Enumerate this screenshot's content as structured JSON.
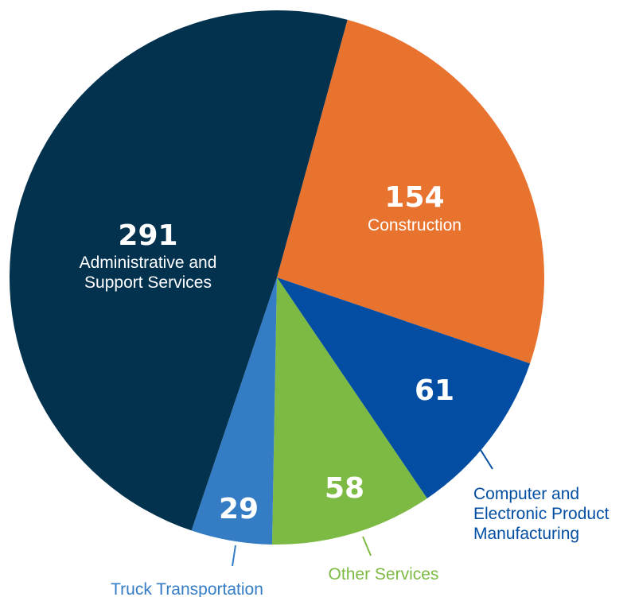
{
  "chart_data": {
    "type": "pie",
    "title": "",
    "slices": [
      {
        "label": "Construction",
        "value": 154,
        "color": "#E8732F",
        "label_color": "#FFFFFF",
        "value_color": "#FFFFFF",
        "label_lines": [
          "Construction"
        ]
      },
      {
        "label": "Computer and Electronic Product Manufacturing",
        "value": 61,
        "color": "#034EA2",
        "label_color": "#034EA2",
        "value_color": "#FFFFFF",
        "label_lines": [
          "Computer and",
          "Electronic Product",
          "Manufacturing"
        ]
      },
      {
        "label": "Other Services",
        "value": 58,
        "color": "#7DBA43",
        "label_color": "#7DBA43",
        "value_color": "#FFFFFF",
        "label_lines": [
          "Other Services"
        ]
      },
      {
        "label": "Truck Transportation",
        "value": 29,
        "color": "#347CC4",
        "label_color": "#347CC4",
        "value_color": "#FFFFFF",
        "label_lines": [
          "Truck Transportation"
        ]
      },
      {
        "label": "Administrative and Support Services",
        "value": 291,
        "color": "#03324F",
        "label_color": "#FFFFFF",
        "value_color": "#FFFFFF",
        "label_lines": [
          "Administrative and",
          "Support Services"
        ]
      }
    ]
  }
}
